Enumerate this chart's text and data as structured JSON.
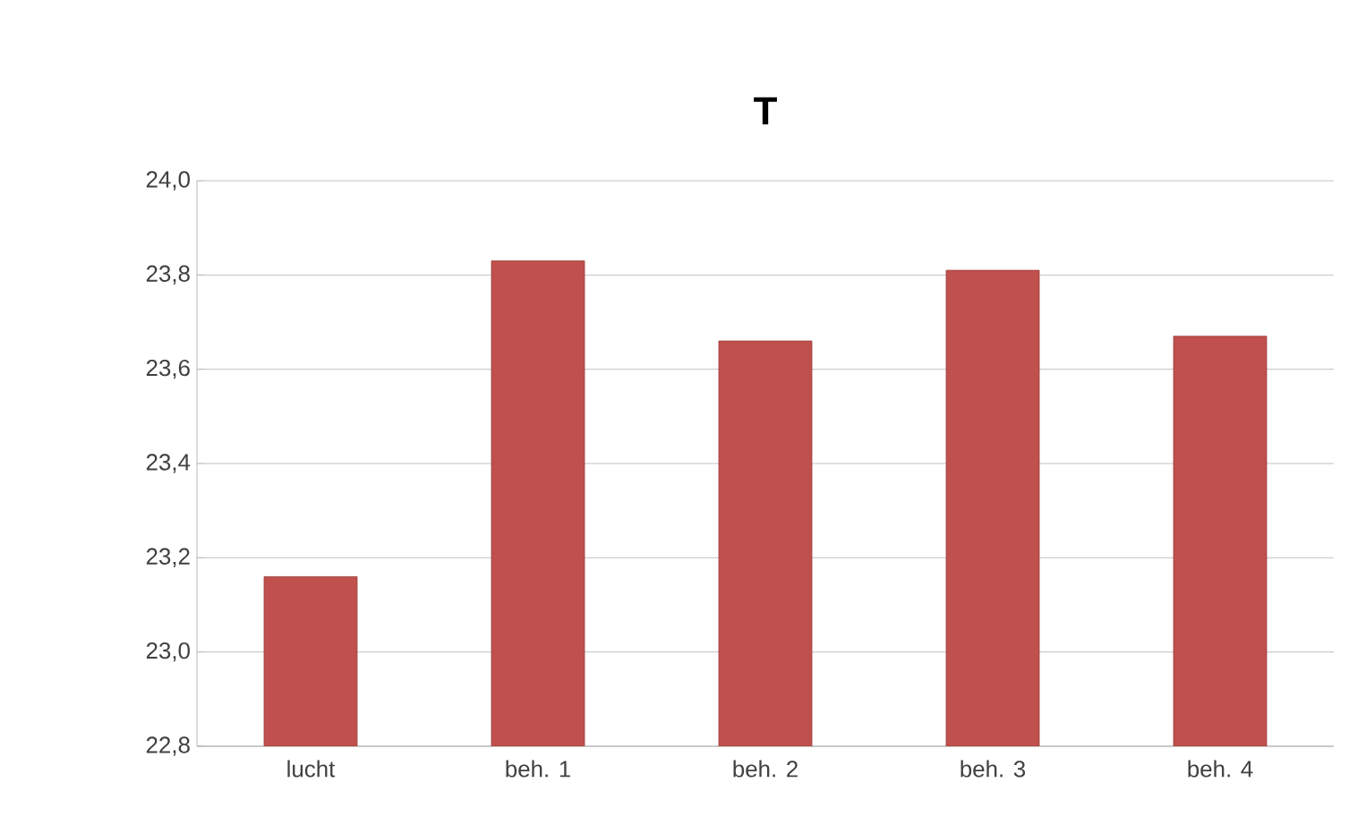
{
  "chart_data": {
    "type": "bar",
    "title": "T",
    "categories": [
      "lucht",
      "beh. 1",
      "beh. 2",
      "beh. 3",
      "beh. 4"
    ],
    "values": [
      23.16,
      23.83,
      23.66,
      23.81,
      23.67
    ],
    "color": "#c0504d",
    "ylim": [
      22.8,
      24.0
    ],
    "yticks": [
      {
        "value": 22.8,
        "label": "22,8"
      },
      {
        "value": 23.0,
        "label": "23,0"
      },
      {
        "value": 23.2,
        "label": "23,2"
      },
      {
        "value": 23.4,
        "label": "23,4"
      },
      {
        "value": 23.6,
        "label": "23,6"
      },
      {
        "value": 23.8,
        "label": "23,8"
      },
      {
        "value": 24.0,
        "label": "24,0"
      }
    ],
    "grid": "y"
  }
}
